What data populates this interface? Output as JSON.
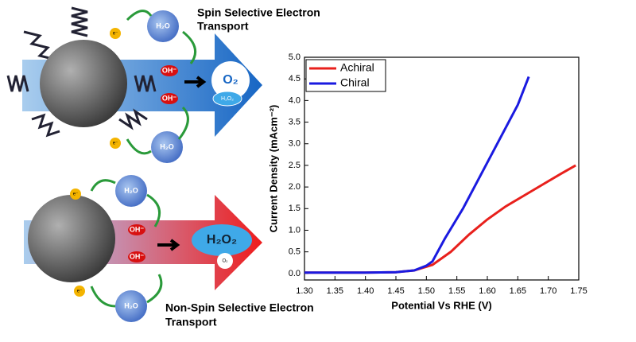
{
  "diagram": {
    "top_title": [
      "Spin Selective Electron",
      "Transport"
    ],
    "bottom_title": [
      "Non-Spin Selective Electron",
      "Transport"
    ],
    "water": "H₂O",
    "electron": "e⁻",
    "hydroxide": "OH⁻",
    "oxygen": "O₂",
    "peroxide": "H₂O₂"
  },
  "chart_data": {
    "type": "line",
    "xlabel": "Potential Vs RHE (V)",
    "ylabel": "Current Density (mAcm⁻²)",
    "xlim": [
      1.3,
      1.75
    ],
    "ylim": [
      -0.15,
      5.0
    ],
    "xticks": [
      {
        "value": 1.3,
        "label": "1.30"
      },
      1.35,
      {
        "value": 1.4,
        "label": "1.40"
      },
      1.45,
      {
        "value": 1.5,
        "label": "1.50"
      },
      1.55,
      {
        "value": 1.6,
        "label": "1.60"
      },
      1.65,
      {
        "value": 1.7,
        "label": "1.70"
      },
      1.75
    ],
    "yticks": [
      {
        "value": 0,
        "label": "0.0"
      },
      0.5,
      {
        "value": 1,
        "label": "1.0"
      },
      1.5,
      {
        "value": 2,
        "label": "2.0"
      },
      2.5,
      {
        "value": 3,
        "label": "3.0"
      },
      3.5,
      {
        "value": 4,
        "label": "4.0"
      },
      4.5,
      {
        "value": 5,
        "label": "5.0"
      }
    ],
    "legend": "upper-left",
    "series": [
      {
        "name": "Achiral",
        "color": "#e8201c",
        "x": [
          1.3,
          1.4,
          1.45,
          1.48,
          1.51,
          1.54,
          1.57,
          1.6,
          1.63,
          1.66,
          1.69,
          1.72,
          1.745
        ],
        "values": [
          0.02,
          0.02,
          0.03,
          0.07,
          0.2,
          0.5,
          0.9,
          1.25,
          1.55,
          1.8,
          2.05,
          2.3,
          2.5
        ]
      },
      {
        "name": "Chiral",
        "color": "#1a1ae0",
        "x": [
          1.3,
          1.4,
          1.45,
          1.48,
          1.5,
          1.51,
          1.53,
          1.56,
          1.59,
          1.62,
          1.65,
          1.668
        ],
        "values": [
          0.02,
          0.02,
          0.03,
          0.07,
          0.18,
          0.28,
          0.8,
          1.5,
          2.3,
          3.1,
          3.9,
          4.55
        ]
      }
    ]
  }
}
